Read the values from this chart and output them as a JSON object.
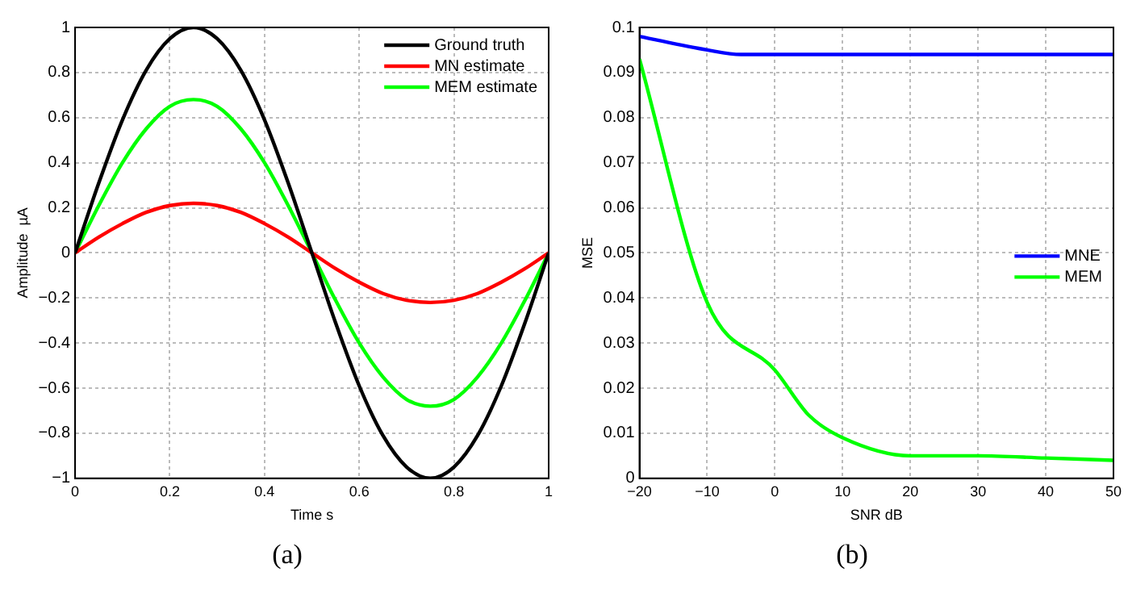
{
  "chart_data": [
    {
      "type": "line",
      "xlabel": "Time s",
      "ylabel": "Amplitude  µA",
      "x": [
        0,
        0.05,
        0.1,
        0.15,
        0.2,
        0.25,
        0.3,
        0.35,
        0.4,
        0.45,
        0.5,
        0.55,
        0.6,
        0.65,
        0.7,
        0.75,
        0.8,
        0.85,
        0.9,
        0.95,
        1
      ],
      "series": [
        {
          "name": "Ground truth",
          "color": "#000000",
          "values": [
            0,
            0.31,
            0.59,
            0.81,
            0.95,
            1,
            0.95,
            0.81,
            0.59,
            0.31,
            0,
            -0.31,
            -0.59,
            -0.81,
            -0.95,
            -1,
            -0.95,
            -0.81,
            -0.59,
            -0.31,
            0
          ]
        },
        {
          "name": "MN estimate",
          "color": "#ff0000",
          "values": [
            0,
            0.07,
            0.13,
            0.18,
            0.21,
            0.22,
            0.21,
            0.18,
            0.13,
            0.07,
            0,
            -0.07,
            -0.13,
            -0.18,
            -0.21,
            -0.22,
            -0.21,
            -0.18,
            -0.13,
            -0.07,
            0
          ]
        },
        {
          "name": "MEM estimate",
          "color": "#00ff00",
          "values": [
            0,
            0.21,
            0.4,
            0.55,
            0.65,
            0.68,
            0.65,
            0.55,
            0.4,
            0.21,
            0,
            -0.21,
            -0.4,
            -0.55,
            -0.65,
            -0.68,
            -0.65,
            -0.55,
            -0.4,
            -0.21,
            0
          ]
        }
      ],
      "xlim": [
        0,
        1
      ],
      "xticks": [
        0,
        0.2,
        0.4,
        0.6,
        0.8,
        1
      ],
      "ylim": [
        -1,
        1
      ],
      "yticks": [
        -1,
        -0.8,
        -0.6,
        -0.4,
        -0.2,
        0,
        0.2,
        0.4,
        0.6,
        0.8,
        1
      ],
      "grid": true,
      "legend": "top right",
      "line_style": "solid",
      "marker": "none",
      "annotations": [
        "(a)"
      ]
    },
    {
      "type": "line",
      "xlabel": "SNR dB",
      "ylabel": "MSE",
      "series": [
        {
          "name": "MNE",
          "color": "#0000ff",
          "x": [
            -20,
            -10,
            -5,
            0,
            10,
            20,
            30,
            40,
            50
          ],
          "values": [
            0.098,
            0.095,
            0.094,
            0.094,
            0.094,
            0.094,
            0.094,
            0.094,
            0.094
          ]
        },
        {
          "name": "MEM",
          "color": "#00ff00",
          "x": [
            -20,
            -10,
            0,
            5,
            10,
            20,
            30,
            40,
            50
          ],
          "values": [
            0.093,
            0.039,
            0.024,
            0.014,
            0.009,
            0.005,
            0.005,
            0.0045,
            0.004
          ]
        }
      ],
      "xlim": [
        -20,
        50
      ],
      "xticks": [
        -20,
        -10,
        0,
        10,
        20,
        30,
        40,
        50
      ],
      "ylim": [
        0,
        0.1
      ],
      "yticks": [
        0,
        0.01,
        0.02,
        0.03,
        0.04,
        0.05,
        0.06,
        0.07,
        0.08,
        0.09,
        0.1
      ],
      "grid": true,
      "legend": "right",
      "line_style": "solid",
      "marker": "none",
      "annotations": [
        "(b)"
      ]
    }
  ]
}
